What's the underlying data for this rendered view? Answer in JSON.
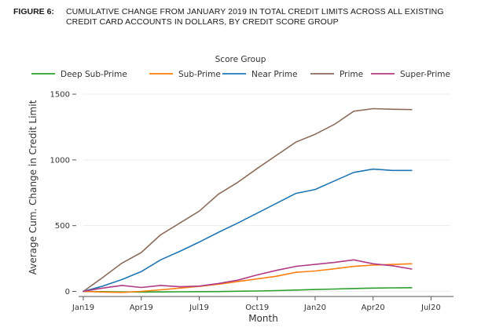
{
  "figure": {
    "label": "FIGURE 6:",
    "title_line1": "CUMULATIVE CHANGE FROM JANUARY 2019 IN TOTAL CREDIT LIMITS ACROSS ALL EXISTING",
    "title_line2": "CREDIT CARD ACCOUNTS IN DOLLARS, BY CREDIT SCORE GROUP"
  },
  "chart_data": {
    "type": "line",
    "xlabel": "Month",
    "ylabel": "Average Cum. Change in Credit Limit",
    "legend_title": "Score Group",
    "legend_position": "top",
    "xlim": [
      0,
      19
    ],
    "ylim": [
      -15,
      1560
    ],
    "x_ticks": [
      {
        "x": 0,
        "label": "Jan19"
      },
      {
        "x": 3,
        "label": "Apr19"
      },
      {
        "x": 6,
        "label": "Jul19"
      },
      {
        "x": 9,
        "label": "Oct19"
      },
      {
        "x": 12,
        "label": "Jan20"
      },
      {
        "x": 15,
        "label": "Apr20"
      },
      {
        "x": 18,
        "label": "Jul20"
      }
    ],
    "y_ticks": [
      {
        "y": 0,
        "label": "0"
      },
      {
        "y": 500,
        "label": "500"
      },
      {
        "y": 1000,
        "label": "1000"
      },
      {
        "y": 1500,
        "label": "1500"
      }
    ],
    "x": [
      0,
      1,
      2,
      3,
      4,
      5,
      6,
      7,
      8,
      9,
      10,
      11,
      12,
      13,
      14,
      15,
      16,
      17
    ],
    "series": [
      {
        "name": "Deep Sub-Prime",
        "color": "#2ca02c",
        "values": [
          0,
          -2,
          -4,
          -5,
          -4,
          -3,
          -2,
          -1,
          1,
          3,
          6,
          10,
          14,
          18,
          22,
          25,
          27,
          28
        ]
      },
      {
        "name": "Sub-Prime",
        "color": "#ff7f0e",
        "values": [
          0,
          -5,
          -8,
          0,
          12,
          25,
          38,
          55,
          75,
          95,
          115,
          145,
          155,
          172,
          190,
          200,
          205,
          210
        ]
      },
      {
        "name": "Near Prime",
        "color": "#1f77b4",
        "values": [
          0,
          40,
          90,
          150,
          240,
          305,
          375,
          450,
          520,
          595,
          670,
          745,
          775,
          840,
          905,
          930,
          920,
          920
        ]
      },
      {
        "name": "Prime",
        "color": "#8c6d5a",
        "values": [
          0,
          105,
          215,
          295,
          430,
          520,
          610,
          740,
          830,
          935,
          1035,
          1135,
          1195,
          1270,
          1370,
          1390,
          1385,
          1383
        ]
      },
      {
        "name": "Super-Prime",
        "color": "#b03a85",
        "values": [
          0,
          25,
          45,
          30,
          45,
          35,
          40,
          60,
          85,
          125,
          160,
          190,
          205,
          220,
          240,
          210,
          195,
          170
        ]
      }
    ]
  }
}
